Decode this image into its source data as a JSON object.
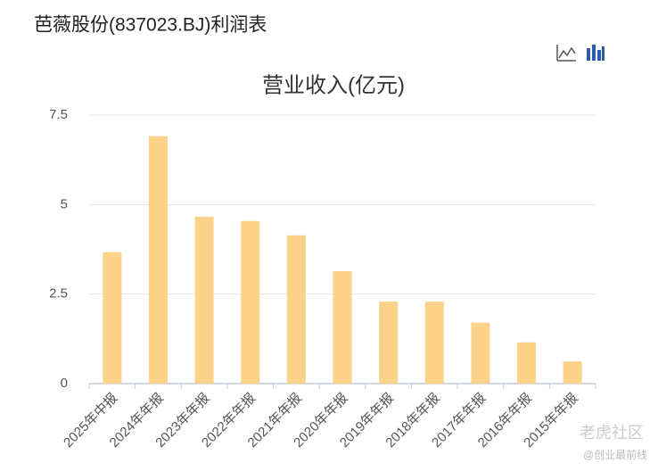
{
  "page_title": "芭薇股份(837023.BJ)利润表",
  "chart_data": {
    "type": "bar",
    "title": "营业收入(亿元)",
    "categories": [
      "2025年中报",
      "2024年年报",
      "2023年年报",
      "2022年年报",
      "2021年年报",
      "2020年年报",
      "2019年年报",
      "2018年年报",
      "2017年年报",
      "2016年年报",
      "2015年年报"
    ],
    "values": [
      3.67,
      6.91,
      4.66,
      4.54,
      4.14,
      3.14,
      2.29,
      2.29,
      1.7,
      1.15,
      0.62
    ],
    "color": "#fdd28a",
    "ylim": [
      0,
      7.5
    ],
    "yticks": [
      0,
      2.5,
      5,
      7.5
    ],
    "grid": true
  },
  "watermark": {
    "brand": "老虎社区",
    "source": "@创业最前线"
  }
}
